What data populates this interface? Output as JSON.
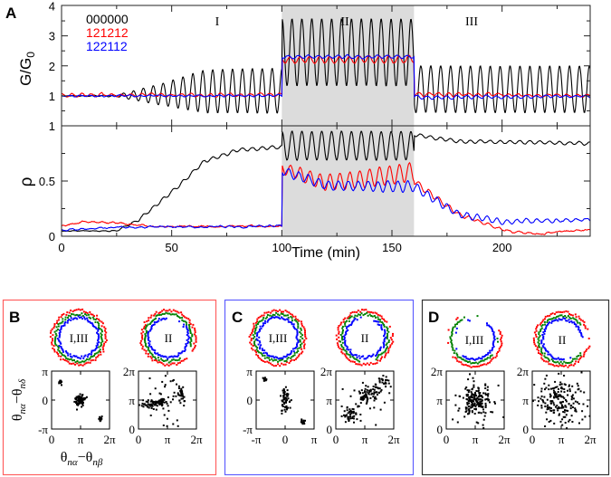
{
  "chart_data": [
    {
      "type": "line",
      "panel_label": "A",
      "xlabel": "Time (min)",
      "xlim": [
        0,
        240
      ],
      "x_ticks": [
        "0",
        "50",
        "100",
        "150",
        "200"
      ],
      "regions": [
        {
          "label": "I",
          "range": [
            0,
            100
          ],
          "shaded": false
        },
        {
          "label": "II",
          "range": [
            100,
            160
          ],
          "shaded": true
        },
        {
          "label": "III",
          "range": [
            160,
            240
          ],
          "shaded": false
        }
      ],
      "shade_color": "#dcdcdc",
      "oscillation_period_min": 4.5,
      "legend": [
        {
          "name": "000000",
          "color": "#000000"
        },
        {
          "name": "121212",
          "color": "#ff0000"
        },
        {
          "name": "122112",
          "color": "#0000ff"
        }
      ],
      "subplots": [
        {
          "ylabel_main": "G/G",
          "ylabel_sub": "0",
          "ylim": [
            0,
            4
          ],
          "y_ticks": [
            "1",
            "2",
            "3",
            "4"
          ],
          "series": [
            {
              "name": "000000",
              "color": "#000000",
              "noise": 0.01,
              "phase": 0,
              "keyframes": [
                [
                  0,
                  1,
                  0
                ],
                [
                  25,
                  1,
                  0.03
                ],
                [
                  45,
                  1.05,
                  0.35
                ],
                [
                  65,
                  1.15,
                  0.72
                ],
                [
                  100,
                  1.17,
                  0.75
                ],
                [
                  100.01,
                  2.45,
                  1.12
                ],
                [
                  160,
                  2.45,
                  1.12
                ],
                [
                  160.01,
                  1.22,
                  0.78
                ],
                [
                  240,
                  1.22,
                  0.78
                ]
              ]
            },
            {
              "name": "121212",
              "color": "#ff0000",
              "noise": 0.03,
              "phase": 1.3,
              "keyframes": [
                [
                  0,
                  1.02,
                  0.05
                ],
                [
                  100,
                  1.03,
                  0.05
                ],
                [
                  100.01,
                  2.2,
                  0.1
                ],
                [
                  160,
                  2.22,
                  0.12
                ],
                [
                  160.01,
                  1.05,
                  0.06
                ],
                [
                  240,
                  1.0,
                  0.03
                ]
              ]
            },
            {
              "name": "122112",
              "color": "#0000ff",
              "noise": 0.02,
              "phase": 2.4,
              "keyframes": [
                [
                  0,
                  1,
                  0.02
                ],
                [
                  100,
                  1,
                  0.03
                ],
                [
                  100.01,
                  2.3,
                  0.05
                ],
                [
                  160,
                  2.3,
                  0.05
                ],
                [
                  160.01,
                  0.95,
                  0.06
                ],
                [
                  240,
                  0.98,
                  0.03
                ]
              ]
            }
          ]
        },
        {
          "ylabel_main": "ρ",
          "ylim": [
            0,
            1
          ],
          "y_ticks": [
            "0",
            "0.5",
            "1"
          ],
          "series": [
            {
              "name": "000000",
              "color": "#000000",
              "noise": 0.004,
              "phase": 0,
              "keyframes": [
                [
                  0,
                  0.05,
                  0
                ],
                [
                  25,
                  0.05,
                  0.004
                ],
                [
                  35,
                  0.15,
                  0.01
                ],
                [
                  50,
                  0.4,
                  0.015
                ],
                [
                  65,
                  0.68,
                  0.015
                ],
                [
                  80,
                  0.78,
                  0.015
                ],
                [
                  100,
                  0.81,
                  0.015
                ],
                [
                  100.01,
                  0.82,
                  0.13
                ],
                [
                  160,
                  0.82,
                  0.13
                ],
                [
                  160.01,
                  0.92,
                  0.015
                ],
                [
                  180,
                  0.86,
                  0.015
                ],
                [
                  240,
                  0.84,
                  0.015
                ]
              ]
            },
            {
              "name": "121212",
              "color": "#ff0000",
              "noise": 0.008,
              "phase": 1.0,
              "keyframes": [
                [
                  0,
                  0.09,
                  0.004
                ],
                [
                  10,
                  0.13,
                  0.004
                ],
                [
                  25,
                  0.12,
                  0.004
                ],
                [
                  40,
                  0.09,
                  0.004
                ],
                [
                  100,
                  0.09,
                  0.004
                ],
                [
                  100.01,
                  0.62,
                  0.05
                ],
                [
                  120,
                  0.48,
                  0.07
                ],
                [
                  160,
                  0.58,
                  0.09
                ],
                [
                  160.01,
                  0.5,
                  0.03
                ],
                [
                  180,
                  0.2,
                  0.02
                ],
                [
                  200,
                  0.06,
                  0.01
                ],
                [
                  215,
                  0.02,
                  0.004
                ],
                [
                  240,
                  0.06,
                  0.004
                ]
              ]
            },
            {
              "name": "122112",
              "color": "#0000ff",
              "noise": 0.008,
              "phase": 2.0,
              "keyframes": [
                [
                  0,
                  0.06,
                  0.004
                ],
                [
                  25,
                  0.08,
                  0.004
                ],
                [
                  100,
                  0.09,
                  0.008
                ],
                [
                  100.01,
                  0.6,
                  0.04
                ],
                [
                  120,
                  0.46,
                  0.04
                ],
                [
                  160,
                  0.45,
                  0.05
                ],
                [
                  160.01,
                  0.45,
                  0.04
                ],
                [
                  180,
                  0.2,
                  0.03
                ],
                [
                  200,
                  0.13,
                  0.02
                ],
                [
                  240,
                  0.15,
                  0.01
                ]
              ]
            }
          ]
        }
      ]
    },
    {
      "type": "scatter",
      "panels": [
        {
          "panel_label": "B",
          "border_color": "#ff6060",
          "xlabel": "θnα−θnβ",
          "ylabel": "θnα−θnδ",
          "circles": [
            {
              "label": "I,III",
              "rings": [
                {
                  "color": "#ff0000",
                  "coverage": 1
                },
                {
                  "color": "#008000",
                  "coverage": 1
                },
                {
                  "color": "#0000ff",
                  "coverage": 1
                }
              ]
            },
            {
              "label": "II",
              "rings": [
                {
                  "color": "#ff0000",
                  "coverage": 0.95
                },
                {
                  "color": "#008000",
                  "coverage": 0.9
                },
                {
                  "color": "#0000ff",
                  "coverage": 0.85
                }
              ]
            }
          ],
          "scatters": [
            {
              "x_range_pi": [
                0,
                2
              ],
              "y_range_pi": [
                -1,
                1
              ],
              "x_ticks": [
                "0",
                "π",
                "2π"
              ],
              "y_ticks": [
                "-π",
                "0",
                "π"
              ],
              "clusters": [
                {
                  "cx": 0.3,
                  "cy": 0.62,
                  "sx": 0.04,
                  "sy": 0.05,
                  "n": 12
                },
                {
                  "cx": 1.0,
                  "cy": 0.0,
                  "sx": 0.08,
                  "sy": 0.1,
                  "n": 70
                },
                {
                  "cx": 1.7,
                  "cy": -0.65,
                  "sx": 0.04,
                  "sy": 0.04,
                  "n": 12
                }
              ]
            },
            {
              "x_range_pi": [
                0,
                2
              ],
              "y_range_pi": [
                0,
                2
              ],
              "x_ticks": [
                "0",
                "π",
                "2π"
              ],
              "y_ticks": [
                "0",
                "π",
                "2π"
              ],
              "clusters": [
                {
                  "cx": 0.45,
                  "cy": 0.85,
                  "sx": 0.2,
                  "sy": 0.1,
                  "n": 40
                },
                {
                  "cx": 0.75,
                  "cy": 0.95,
                  "sx": 0.12,
                  "sy": 0.07,
                  "n": 30
                },
                {
                  "cx": 1.45,
                  "cy": 1.2,
                  "sx": 0.08,
                  "sy": 0.15,
                  "n": 30
                },
                {
                  "cx": 1.0,
                  "cy": 1.0,
                  "sx": 0.45,
                  "sy": 0.5,
                  "n": 45
                }
              ]
            }
          ]
        },
        {
          "panel_label": "C",
          "border_color": "#6060ff",
          "circles": [
            {
              "label": "I,III",
              "rings": [
                {
                  "color": "#ff0000",
                  "coverage": 1
                },
                {
                  "color": "#008000",
                  "coverage": 1
                },
                {
                  "color": "#0000ff",
                  "coverage": 1
                }
              ]
            },
            {
              "label": "II",
              "rings": [
                {
                  "color": "#ff0000",
                  "coverage": 0.92
                },
                {
                  "color": "#008000",
                  "coverage": 0.9
                },
                {
                  "color": "#0000ff",
                  "coverage": 0.85
                }
              ]
            }
          ],
          "scatters": [
            {
              "x_range_pi": [
                -1,
                1
              ],
              "y_range_pi": [
                -1,
                1
              ],
              "x_ticks": [
                "-π",
                "0",
                "π"
              ],
              "y_ticks": [
                "-π",
                "0",
                "π"
              ],
              "clusters": [
                {
                  "cx": -0.7,
                  "cy": 0.72,
                  "sx": 0.04,
                  "sy": 0.04,
                  "n": 12
                },
                {
                  "cx": 0.0,
                  "cy": 0.0,
                  "sx": 0.07,
                  "sy": 0.2,
                  "n": 60
                },
                {
                  "cx": 0.6,
                  "cy": -0.75,
                  "sx": 0.05,
                  "sy": 0.05,
                  "n": 15
                }
              ]
            },
            {
              "x_range_pi": [
                0,
                2
              ],
              "y_range_pi": [
                0,
                2
              ],
              "x_ticks": [
                "0",
                "π",
                "2π"
              ],
              "y_ticks": [
                "0",
                "π",
                "2π"
              ],
              "clusters": [
                {
                  "cx": 0.5,
                  "cy": 0.5,
                  "sx": 0.15,
                  "sy": 0.15,
                  "n": 40
                },
                {
                  "cx": 1.0,
                  "cy": 1.15,
                  "sx": 0.15,
                  "sy": 0.15,
                  "n": 35
                },
                {
                  "cx": 1.3,
                  "cy": 1.3,
                  "sx": 0.12,
                  "sy": 0.1,
                  "n": 30
                },
                {
                  "cx": 1.65,
                  "cy": 1.6,
                  "sx": 0.15,
                  "sy": 0.15,
                  "n": 30
                },
                {
                  "cx": 1.0,
                  "cy": 1.0,
                  "sx": 0.45,
                  "sy": 0.45,
                  "n": 25
                }
              ]
            }
          ]
        },
        {
          "panel_label": "D",
          "border_color": "#333333",
          "circles": [
            {
              "label": "I,III",
              "rings": [
                {
                  "color": "#ff0000",
                  "coverage": 0.45
                },
                {
                  "color": "#008000",
                  "coverage": 0.55
                },
                {
                  "color": "#0000ff",
                  "coverage": 0.5
                }
              ]
            },
            {
              "label": "II",
              "rings": [
                {
                  "color": "#ff0000",
                  "coverage": 0.9
                },
                {
                  "color": "#008000",
                  "coverage": 0.8
                },
                {
                  "color": "#0000ff",
                  "coverage": 0.75
                }
              ]
            }
          ],
          "scatters": [
            {
              "x_range_pi": [
                0,
                2
              ],
              "y_range_pi": [
                0,
                2
              ],
              "x_ticks": [
                "0",
                "π",
                "2π"
              ],
              "y_ticks": [
                "0",
                "π",
                "2π"
              ],
              "clusters": [
                {
                  "cx": 1.0,
                  "cy": 1.0,
                  "sx": 0.22,
                  "sy": 0.22,
                  "n": 130
                },
                {
                  "cx": 1.0,
                  "cy": 1.0,
                  "sx": 0.5,
                  "sy": 0.5,
                  "n": 60
                }
              ]
            },
            {
              "x_range_pi": [
                0,
                2
              ],
              "y_range_pi": [
                0,
                2
              ],
              "x_ticks": [
                "0",
                "π",
                "2π"
              ],
              "y_ticks": [
                "0",
                "π",
                "2π"
              ],
              "clusters": [
                {
                  "cx": 0.95,
                  "cy": 1.0,
                  "sx": 0.35,
                  "sy": 0.35,
                  "n": 130
                },
                {
                  "cx": 1.0,
                  "cy": 1.0,
                  "sx": 0.6,
                  "sy": 0.6,
                  "n": 70
                }
              ]
            }
          ]
        }
      ]
    }
  ]
}
